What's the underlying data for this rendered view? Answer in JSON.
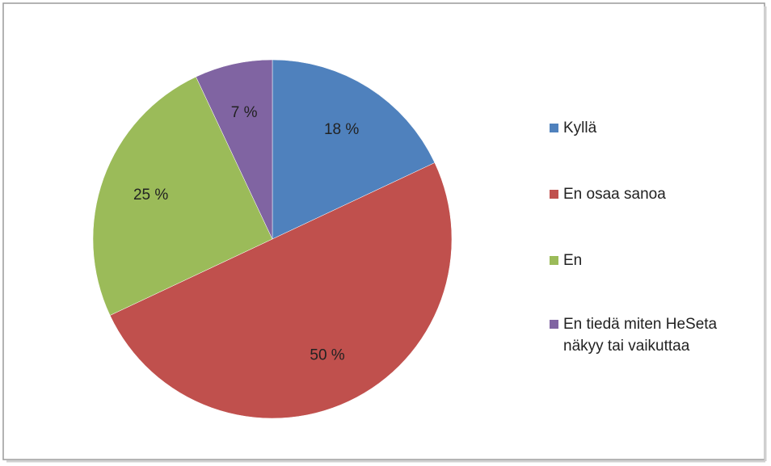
{
  "chart_data": {
    "type": "pie",
    "categories": [
      "Kyllä",
      "En osaa sanoa",
      "En",
      "En tiedä miten HeSeta näkyy tai vaikuttaa"
    ],
    "values": [
      18,
      50,
      25,
      7
    ],
    "value_labels": [
      "18 %",
      "50 %",
      "25 %",
      "7 %"
    ],
    "colors": [
      "#4f81bd",
      "#c0504d",
      "#9bbb59",
      "#8064a2"
    ],
    "legend": "right"
  }
}
